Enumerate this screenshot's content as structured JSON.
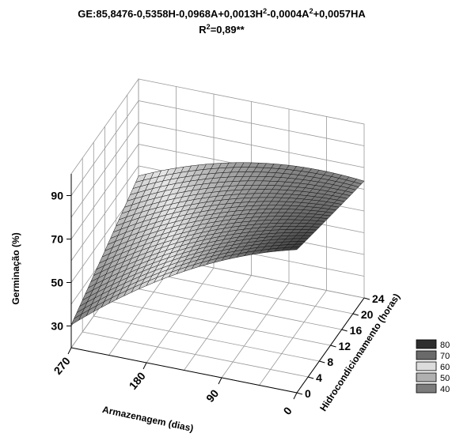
{
  "chart_data": {
    "type": "surface3d",
    "title_line1": "GE:85,8476-0,5358H-0,0968A+0,0013H",
    "title_line1_sup1": "2",
    "title_line1_mid": "-0,0004A",
    "title_line1_sup2": "2",
    "title_line1_end": "+0,0057HA",
    "title_line2_a": "R",
    "title_line2_sup": "2",
    "title_line2_b": "=0,89**",
    "zlabel": "Germinação (%)",
    "xlabel": "Armazenagem (dias)",
    "ylabel": "Hidrocondicionamento (horas)",
    "x_ticks": [
      "270",
      "180",
      "90",
      "0"
    ],
    "x_tick_values": [
      270,
      180,
      90,
      0
    ],
    "y_ticks": [
      "0",
      "4",
      "8",
      "12",
      "16",
      "20",
      "24"
    ],
    "y_tick_values": [
      0,
      4,
      8,
      12,
      16,
      20,
      24
    ],
    "z_ticks": [
      "30",
      "50",
      "70",
      "90"
    ],
    "z_tick_values": [
      30,
      50,
      70,
      90
    ],
    "xlim": [
      0,
      270
    ],
    "ylim": [
      0,
      24
    ],
    "zlim": [
      20,
      100
    ],
    "coefficients": {
      "intercept": 85.8476,
      "H": -0.5358,
      "A": -0.0968,
      "H2": 0.0013,
      "A2": -0.0004,
      "HA": 0.0057
    },
    "legend": [
      {
        "label": "80",
        "color": "#2e2e2e"
      },
      {
        "label": "70",
        "color": "#6a6a6a"
      },
      {
        "label": "60",
        "color": "#dcdcdc"
      },
      {
        "label": "50",
        "color": "#b0b0b0"
      },
      {
        "label": "40",
        "color": "#7c7c7c"
      }
    ]
  }
}
